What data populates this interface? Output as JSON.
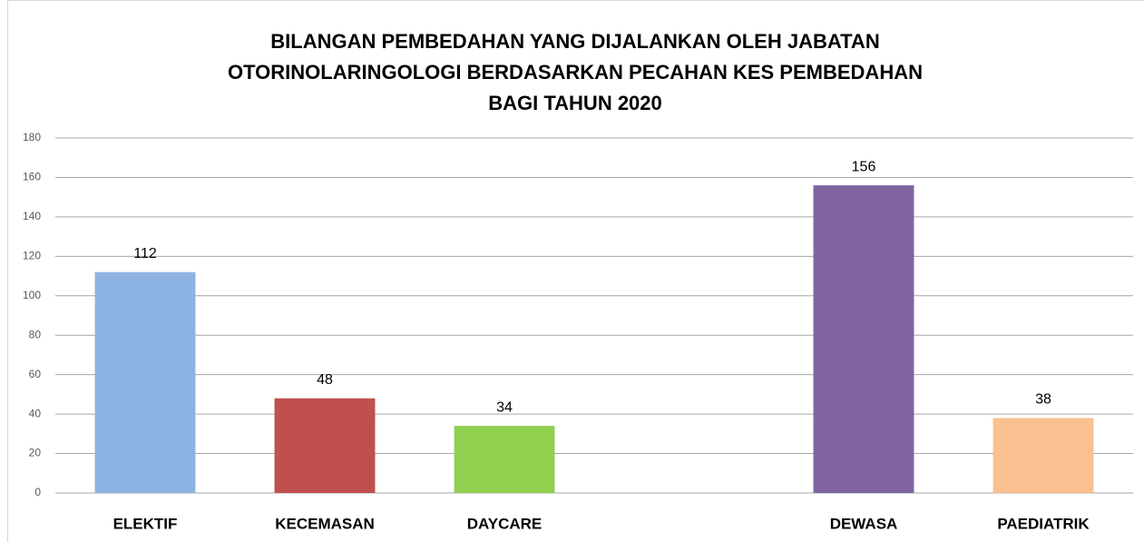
{
  "chart_data": {
    "type": "bar",
    "title": [
      "BILANGAN PEMBEDAHAN YANG DIJALANKAN OLEH JABATAN",
      "OTORINOLARINGOLOGI BERDASARKAN PECAHAN KES PEMBEDAHAN",
      "BAGI TAHUN 2020"
    ],
    "categories": [
      "ELEKTIF",
      "KECEMASAN",
      "DAYCARE",
      null,
      "DEWASA",
      "PAEDIATRIK"
    ],
    "values": [
      112,
      48,
      34,
      null,
      156,
      38
    ],
    "colors": [
      "#8db3e2",
      "#c0504d",
      "#92d050",
      null,
      "#8064a2",
      "#fac08f"
    ],
    "ylim": [
      0,
      180
    ],
    "yticks": [
      0,
      20,
      40,
      60,
      80,
      100,
      120,
      140,
      160,
      180
    ],
    "grid": true,
    "data_labels": true
  }
}
